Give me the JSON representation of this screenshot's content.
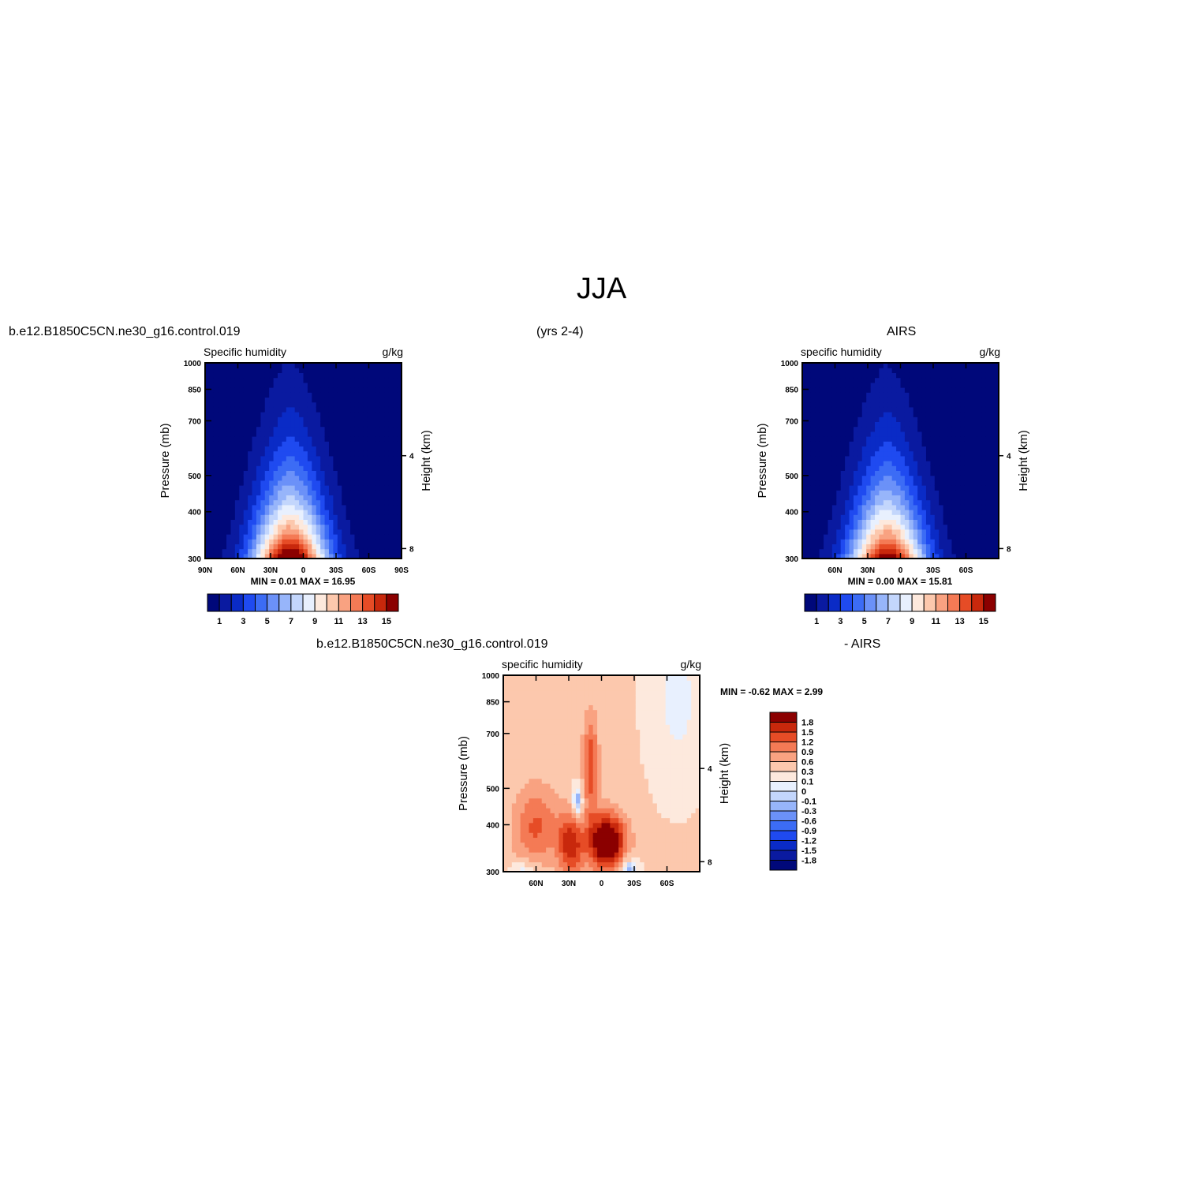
{
  "main_title": "JJA",
  "header": {
    "case_left": "b.e12.B1850C5CN.ne30_g16.control.019",
    "years": "(yrs 2-4)",
    "obs_right": "AIRS",
    "case_bottom": "b.e12.B1850C5CN.ne30_g16.control.019",
    "minus_obs": "- AIRS"
  },
  "colors": {
    "seq": [
      "#00087a",
      "#0a1aa0",
      "#0a2bc6",
      "#1f4af0",
      "#3c6cf5",
      "#6b91f8",
      "#97b5fa",
      "#c3d6fc",
      "#e8f0fe",
      "#fde9dd",
      "#fcc8ad",
      "#f9a281",
      "#f47a55",
      "#e64c26",
      "#c8280c",
      "#8b0000"
    ],
    "diverging": [
      "#00087a",
      "#0a1aa0",
      "#0a2bc6",
      "#1f4af0",
      "#3c6cf5",
      "#6b91f8",
      "#97b5fa",
      "#c3d6fc",
      "#e8f0fe",
      "#fde9dd",
      "#fcc8ad",
      "#f9a281",
      "#f47a55",
      "#e64c26",
      "#c8280c",
      "#8b0000"
    ]
  },
  "chart_data": [
    {
      "id": "model",
      "type": "contour",
      "title": "Specific humidity",
      "units": "g/kg",
      "ylabel": "Pressure (mb)",
      "ylabel_right": "Height (km)",
      "x_ticks": [
        "90N",
        "60N",
        "30N",
        "0",
        "30S",
        "60S",
        "90S"
      ],
      "y_ticks": [
        "300",
        "400",
        "500",
        "700",
        "850",
        "1000"
      ],
      "y_ticks_right": [
        "8",
        "4"
      ],
      "xlim": [
        90,
        -90
      ],
      "ylim": [
        1000,
        300
      ],
      "stats": "MIN =    0.01   MAX =    16.95",
      "min": 0.01,
      "max": 16.95,
      "peak_lat": 12,
      "levels": [
        1,
        2,
        3,
        4,
        5,
        6,
        7,
        8,
        9,
        10,
        11,
        12,
        13,
        14,
        15
      ],
      "colorbar_labels": [
        "1",
        "3",
        "5",
        "7",
        "9",
        "11",
        "13",
        "15"
      ]
    },
    {
      "id": "obs",
      "type": "contour",
      "title": "specific humidity",
      "units": "g/kg",
      "ylabel": "Pressure (mb)",
      "ylabel_right": "Height (km)",
      "x_ticks": [
        "60N",
        "30N",
        "0",
        "30S",
        "60S"
      ],
      "y_ticks": [
        "300",
        "400",
        "500",
        "700",
        "850",
        "1000"
      ],
      "y_ticks_right": [
        "8",
        "4"
      ],
      "xlim": [
        90,
        -90
      ],
      "ylim": [
        1000,
        300
      ],
      "stats": "MIN =    0.00   MAX =    15.81",
      "min": 0.0,
      "max": 15.81,
      "peak_lat": 12,
      "levels": [
        1,
        2,
        3,
        4,
        5,
        6,
        7,
        8,
        9,
        10,
        11,
        12,
        13,
        14,
        15
      ],
      "colorbar_labels": [
        "1",
        "3",
        "5",
        "7",
        "9",
        "11",
        "13",
        "15"
      ]
    },
    {
      "id": "diff",
      "type": "contour",
      "title": "specific humidity",
      "units": "g/kg",
      "ylabel": "Pressure (mb)",
      "ylabel_right": "Height (km)",
      "x_ticks": [
        "60N",
        "30N",
        "0",
        "30S",
        "60S"
      ],
      "y_ticks": [
        "300",
        "400",
        "500",
        "700",
        "850",
        "1000"
      ],
      "y_ticks_right": [
        "8",
        "4"
      ],
      "xlim": [
        90,
        -90
      ],
      "ylim": [
        1000,
        300
      ],
      "stats": "MIN =   -0.62   MAX =    2.99",
      "min": -0.62,
      "max": 2.99,
      "levels": [
        -1.8,
        -1.5,
        -1.2,
        -0.9,
        -0.6,
        -0.3,
        -0.1,
        0,
        0.1,
        0.3,
        0.6,
        0.9,
        1.2,
        1.5,
        1.8
      ],
      "colorbar_labels": [
        "1.8",
        "1.5",
        "1.2",
        "0.9",
        "0.6",
        "0.3",
        "0.1",
        "0",
        "-0.1",
        "-0.3",
        "-0.6",
        "-0.9",
        "-1.2",
        "-1.5",
        "-1.8"
      ]
    }
  ]
}
